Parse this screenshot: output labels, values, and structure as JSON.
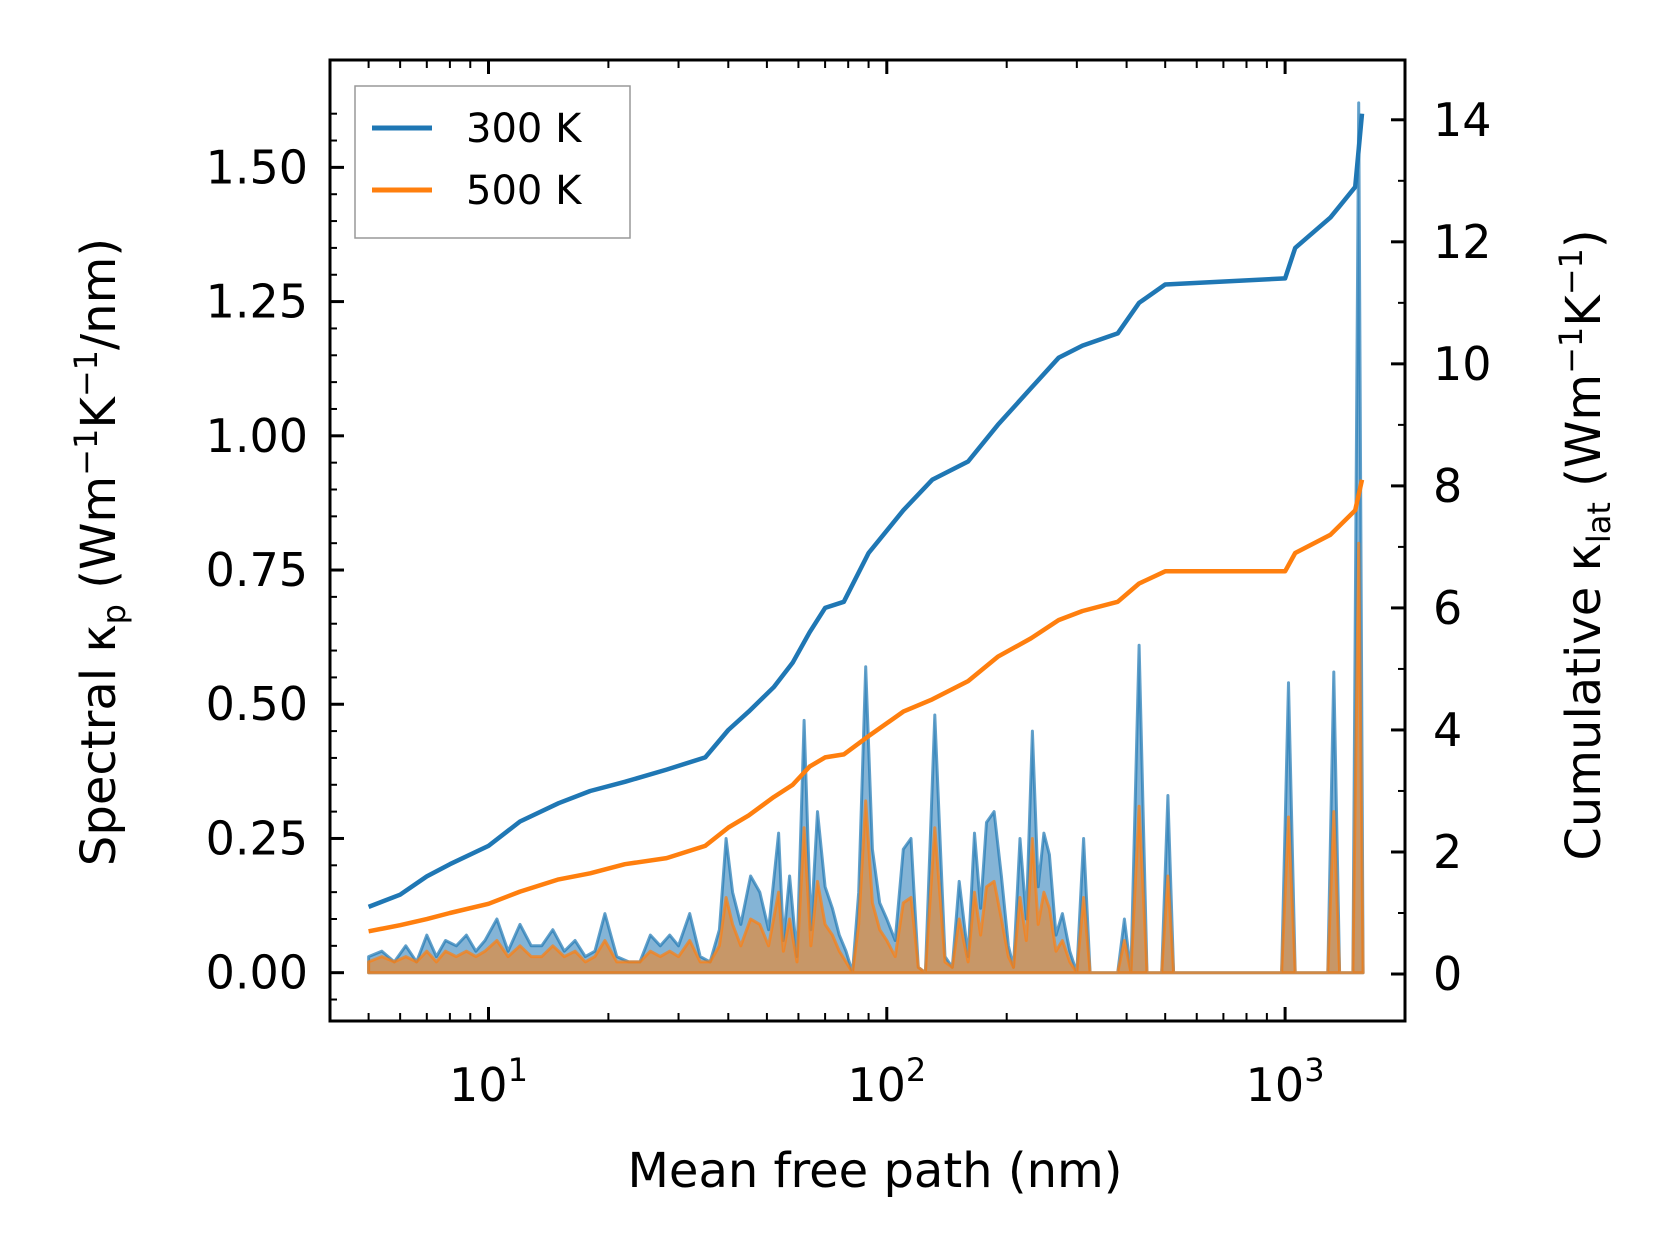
{
  "chart_data": {
    "type": "line",
    "title": "",
    "xlabel": "Mean free path (nm)",
    "ylabel_left": {
      "base": "Spectral κ",
      "sub": "p",
      "units": "(Wm",
      "sup1": "−1",
      "mid": "K",
      "sup2": "−1",
      "tail": "/nm)"
    },
    "ylabel_right": {
      "base": "Cumulative κ",
      "sub": "lat",
      "units": " (Wm",
      "sup1": "−1",
      "mid": "K",
      "sup2": "−1",
      "tail": ")"
    },
    "x_scale": "log",
    "xlim": [
      4,
      2000
    ],
    "x_ticks": [
      {
        "value": 10,
        "label_base": "10",
        "label_exp": "1"
      },
      {
        "value": 100,
        "label_base": "10",
        "label_exp": "2"
      },
      {
        "value": 1000,
        "label_base": "10",
        "label_exp": "3"
      }
    ],
    "ylim_left": [
      -0.09,
      1.7
    ],
    "y_ticks_left": [
      {
        "value": 0.0,
        "label": "0.00"
      },
      {
        "value": 0.25,
        "label": "0.25"
      },
      {
        "value": 0.5,
        "label": "0.50"
      },
      {
        "value": 0.75,
        "label": "0.75"
      },
      {
        "value": 1.0,
        "label": "1.00"
      },
      {
        "value": 1.25,
        "label": "1.25"
      },
      {
        "value": 1.5,
        "label": "1.50"
      }
    ],
    "ylim_right": [
      -0.77,
      14.98
    ],
    "y_ticks_right": [
      {
        "value": 0,
        "label": "0"
      },
      {
        "value": 2,
        "label": "2"
      },
      {
        "value": 4,
        "label": "4"
      },
      {
        "value": 6,
        "label": "6"
      },
      {
        "value": 8,
        "label": "8"
      },
      {
        "value": 10,
        "label": "10"
      },
      {
        "value": 12,
        "label": "12"
      },
      {
        "value": 14,
        "label": "14"
      }
    ],
    "legend": {
      "position": "top-left",
      "entries": [
        "300 K",
        "500 K"
      ]
    },
    "colors": {
      "300 K": "#1f77b4",
      "500 K": "#ff7f0e",
      "axis": "#000000",
      "legend_border": "#999999"
    },
    "series": [
      {
        "name": "300 K",
        "kind": "cumulative",
        "axis": "right",
        "color": "#1f77b4",
        "points": [
          [
            5,
            1.1
          ],
          [
            6,
            1.3
          ],
          [
            7,
            1.6
          ],
          [
            8,
            1.8
          ],
          [
            10,
            2.1
          ],
          [
            12,
            2.5
          ],
          [
            15,
            2.8
          ],
          [
            18,
            3.0
          ],
          [
            22,
            3.15
          ],
          [
            28,
            3.35
          ],
          [
            35,
            3.55
          ],
          [
            40,
            4.0
          ],
          [
            45,
            4.3
          ],
          [
            52,
            4.7
          ],
          [
            58,
            5.1
          ],
          [
            64,
            5.6
          ],
          [
            70,
            6.0
          ],
          [
            78,
            6.1
          ],
          [
            90,
            6.9
          ],
          [
            110,
            7.6
          ],
          [
            130,
            8.1
          ],
          [
            160,
            8.4
          ],
          [
            190,
            9.0
          ],
          [
            230,
            9.6
          ],
          [
            270,
            10.1
          ],
          [
            310,
            10.3
          ],
          [
            380,
            10.5
          ],
          [
            430,
            11.0
          ],
          [
            500,
            11.3
          ],
          [
            1000,
            11.4
          ],
          [
            1060,
            11.9
          ],
          [
            1300,
            12.4
          ],
          [
            1500,
            12.9
          ],
          [
            1560,
            14.1
          ]
        ]
      },
      {
        "name": "500 K",
        "kind": "cumulative",
        "axis": "right",
        "color": "#ff7f0e",
        "points": [
          [
            5,
            0.7
          ],
          [
            6,
            0.8
          ],
          [
            7,
            0.9
          ],
          [
            8,
            1.0
          ],
          [
            10,
            1.15
          ],
          [
            12,
            1.35
          ],
          [
            15,
            1.55
          ],
          [
            18,
            1.65
          ],
          [
            22,
            1.8
          ],
          [
            28,
            1.9
          ],
          [
            35,
            2.1
          ],
          [
            40,
            2.4
          ],
          [
            45,
            2.6
          ],
          [
            52,
            2.9
          ],
          [
            58,
            3.1
          ],
          [
            64,
            3.4
          ],
          [
            70,
            3.55
          ],
          [
            78,
            3.6
          ],
          [
            90,
            3.9
          ],
          [
            110,
            4.3
          ],
          [
            130,
            4.5
          ],
          [
            160,
            4.8
          ],
          [
            190,
            5.2
          ],
          [
            230,
            5.5
          ],
          [
            270,
            5.8
          ],
          [
            310,
            5.95
          ],
          [
            380,
            6.1
          ],
          [
            430,
            6.4
          ],
          [
            500,
            6.6
          ],
          [
            1000,
            6.6
          ],
          [
            1060,
            6.9
          ],
          [
            1300,
            7.2
          ],
          [
            1500,
            7.6
          ],
          [
            1560,
            8.1
          ]
        ]
      },
      {
        "name": "300 K",
        "kind": "spectral",
        "axis": "left",
        "color": "#1f77b4",
        "points": [
          [
            5,
            0.03
          ],
          [
            5.4,
            0.04
          ],
          [
            5.8,
            0.02
          ],
          [
            6.2,
            0.05
          ],
          [
            6.6,
            0.02
          ],
          [
            7,
            0.07
          ],
          [
            7.4,
            0.03
          ],
          [
            7.8,
            0.06
          ],
          [
            8.3,
            0.05
          ],
          [
            8.8,
            0.07
          ],
          [
            9.3,
            0.04
          ],
          [
            9.8,
            0.06
          ],
          [
            10.5,
            0.1
          ],
          [
            11.2,
            0.04
          ],
          [
            12,
            0.09
          ],
          [
            12.8,
            0.05
          ],
          [
            13.6,
            0.05
          ],
          [
            14.5,
            0.08
          ],
          [
            15.5,
            0.04
          ],
          [
            16.5,
            0.06
          ],
          [
            17.5,
            0.03
          ],
          [
            18.5,
            0.04
          ],
          [
            19.6,
            0.11
          ],
          [
            21,
            0.03
          ],
          [
            22.5,
            0.02
          ],
          [
            24,
            0.02
          ],
          [
            25.5,
            0.07
          ],
          [
            27,
            0.05
          ],
          [
            28.5,
            0.07
          ],
          [
            30,
            0.05
          ],
          [
            32,
            0.11
          ],
          [
            34,
            0.03
          ],
          [
            36,
            0.02
          ],
          [
            38,
            0.08
          ],
          [
            39.5,
            0.25
          ],
          [
            41,
            0.15
          ],
          [
            43,
            0.09
          ],
          [
            45.5,
            0.18
          ],
          [
            48,
            0.15
          ],
          [
            50.5,
            0.08
          ],
          [
            53.5,
            0.26
          ],
          [
            55,
            0.06
          ],
          [
            57,
            0.18
          ],
          [
            59.5,
            0.03
          ],
          [
            62,
            0.47
          ],
          [
            64.5,
            0.08
          ],
          [
            67,
            0.3
          ],
          [
            70,
            0.16
          ],
          [
            73,
            0.12
          ],
          [
            76,
            0.07
          ],
          [
            79,
            0.04
          ],
          [
            82,
            0.0
          ],
          [
            85,
            0.15
          ],
          [
            88.5,
            0.57
          ],
          [
            92,
            0.23
          ],
          [
            96,
            0.13
          ],
          [
            100,
            0.1
          ],
          [
            105,
            0.06
          ],
          [
            110,
            0.23
          ],
          [
            115,
            0.25
          ],
          [
            120,
            0.01
          ],
          [
            125,
            0.0
          ],
          [
            132,
            0.48
          ],
          [
            140,
            0.03
          ],
          [
            146,
            0.01
          ],
          [
            152,
            0.17
          ],
          [
            160,
            0.03
          ],
          [
            166,
            0.26
          ],
          [
            172,
            0.12
          ],
          [
            178,
            0.28
          ],
          [
            186,
            0.3
          ],
          [
            194,
            0.18
          ],
          [
            202,
            0.05
          ],
          [
            208,
            0.01
          ],
          [
            216,
            0.25
          ],
          [
            224,
            0.1
          ],
          [
            232,
            0.45
          ],
          [
            240,
            0.16
          ],
          [
            248,
            0.26
          ],
          [
            256,
            0.22
          ],
          [
            266,
            0.07
          ],
          [
            276,
            0.11
          ],
          [
            288,
            0.04
          ],
          [
            300,
            0.0
          ],
          [
            312,
            0.25
          ],
          [
            324,
            0.0
          ],
          [
            380,
            0.0
          ],
          [
            395,
            0.1
          ],
          [
            410,
            0.0
          ],
          [
            430,
            0.61
          ],
          [
            450,
            0.0
          ],
          [
            490,
            0.0
          ],
          [
            508,
            0.33
          ],
          [
            525,
            0.0
          ],
          [
            980,
            0.0
          ],
          [
            1020,
            0.54
          ],
          [
            1060,
            0.0
          ],
          [
            1280,
            0.0
          ],
          [
            1325,
            0.56
          ],
          [
            1370,
            0.0
          ],
          [
            1480,
            0.0
          ],
          [
            1530,
            1.62
          ],
          [
            1570,
            0.0
          ]
        ]
      },
      {
        "name": "500 K",
        "kind": "spectral",
        "axis": "left",
        "color": "#ff7f0e",
        "points": [
          [
            5,
            0.02
          ],
          [
            5.4,
            0.03
          ],
          [
            5.8,
            0.02
          ],
          [
            6.2,
            0.03
          ],
          [
            6.6,
            0.02
          ],
          [
            7,
            0.04
          ],
          [
            7.4,
            0.02
          ],
          [
            7.8,
            0.04
          ],
          [
            8.3,
            0.03
          ],
          [
            8.8,
            0.04
          ],
          [
            9.3,
            0.03
          ],
          [
            9.8,
            0.04
          ],
          [
            10.5,
            0.06
          ],
          [
            11.2,
            0.03
          ],
          [
            12,
            0.05
          ],
          [
            12.8,
            0.03
          ],
          [
            13.6,
            0.03
          ],
          [
            14.5,
            0.05
          ],
          [
            15.5,
            0.03
          ],
          [
            16.5,
            0.04
          ],
          [
            17.5,
            0.02
          ],
          [
            18.5,
            0.03
          ],
          [
            19.6,
            0.06
          ],
          [
            21,
            0.02
          ],
          [
            22.5,
            0.02
          ],
          [
            24,
            0.02
          ],
          [
            25.5,
            0.04
          ],
          [
            27,
            0.03
          ],
          [
            28.5,
            0.04
          ],
          [
            30,
            0.03
          ],
          [
            32,
            0.06
          ],
          [
            34,
            0.02
          ],
          [
            36,
            0.02
          ],
          [
            38,
            0.05
          ],
          [
            39.5,
            0.14
          ],
          [
            41,
            0.09
          ],
          [
            43,
            0.05
          ],
          [
            45.5,
            0.1
          ],
          [
            48,
            0.09
          ],
          [
            50.5,
            0.05
          ],
          [
            53.5,
            0.15
          ],
          [
            55,
            0.04
          ],
          [
            57,
            0.1
          ],
          [
            59.5,
            0.02
          ],
          [
            62,
            0.27
          ],
          [
            64.5,
            0.05
          ],
          [
            67,
            0.17
          ],
          [
            70,
            0.09
          ],
          [
            73,
            0.07
          ],
          [
            76,
            0.04
          ],
          [
            79,
            0.02
          ],
          [
            82,
            0.0
          ],
          [
            85,
            0.09
          ],
          [
            88.5,
            0.32
          ],
          [
            92,
            0.13
          ],
          [
            96,
            0.08
          ],
          [
            100,
            0.06
          ],
          [
            105,
            0.03
          ],
          [
            110,
            0.13
          ],
          [
            115,
            0.14
          ],
          [
            120,
            0.01
          ],
          [
            125,
            0.0
          ],
          [
            132,
            0.27
          ],
          [
            140,
            0.02
          ],
          [
            146,
            0.01
          ],
          [
            152,
            0.1
          ],
          [
            160,
            0.02
          ],
          [
            166,
            0.15
          ],
          [
            172,
            0.07
          ],
          [
            178,
            0.16
          ],
          [
            186,
            0.17
          ],
          [
            194,
            0.1
          ],
          [
            202,
            0.03
          ],
          [
            208,
            0.01
          ],
          [
            216,
            0.14
          ],
          [
            224,
            0.06
          ],
          [
            232,
            0.25
          ],
          [
            240,
            0.09
          ],
          [
            248,
            0.15
          ],
          [
            256,
            0.12
          ],
          [
            266,
            0.04
          ],
          [
            276,
            0.06
          ],
          [
            288,
            0.02
          ],
          [
            300,
            0.0
          ],
          [
            312,
            0.14
          ],
          [
            324,
            0.0
          ],
          [
            380,
            0.0
          ],
          [
            395,
            0.06
          ],
          [
            410,
            0.0
          ],
          [
            430,
            0.31
          ],
          [
            450,
            0.0
          ],
          [
            490,
            0.0
          ],
          [
            508,
            0.18
          ],
          [
            525,
            0.0
          ],
          [
            980,
            0.0
          ],
          [
            1020,
            0.29
          ],
          [
            1060,
            0.0
          ],
          [
            1280,
            0.0
          ],
          [
            1325,
            0.3
          ],
          [
            1370,
            0.0
          ],
          [
            1480,
            0.0
          ],
          [
            1530,
            0.8
          ],
          [
            1570,
            0.0
          ]
        ]
      }
    ]
  }
}
